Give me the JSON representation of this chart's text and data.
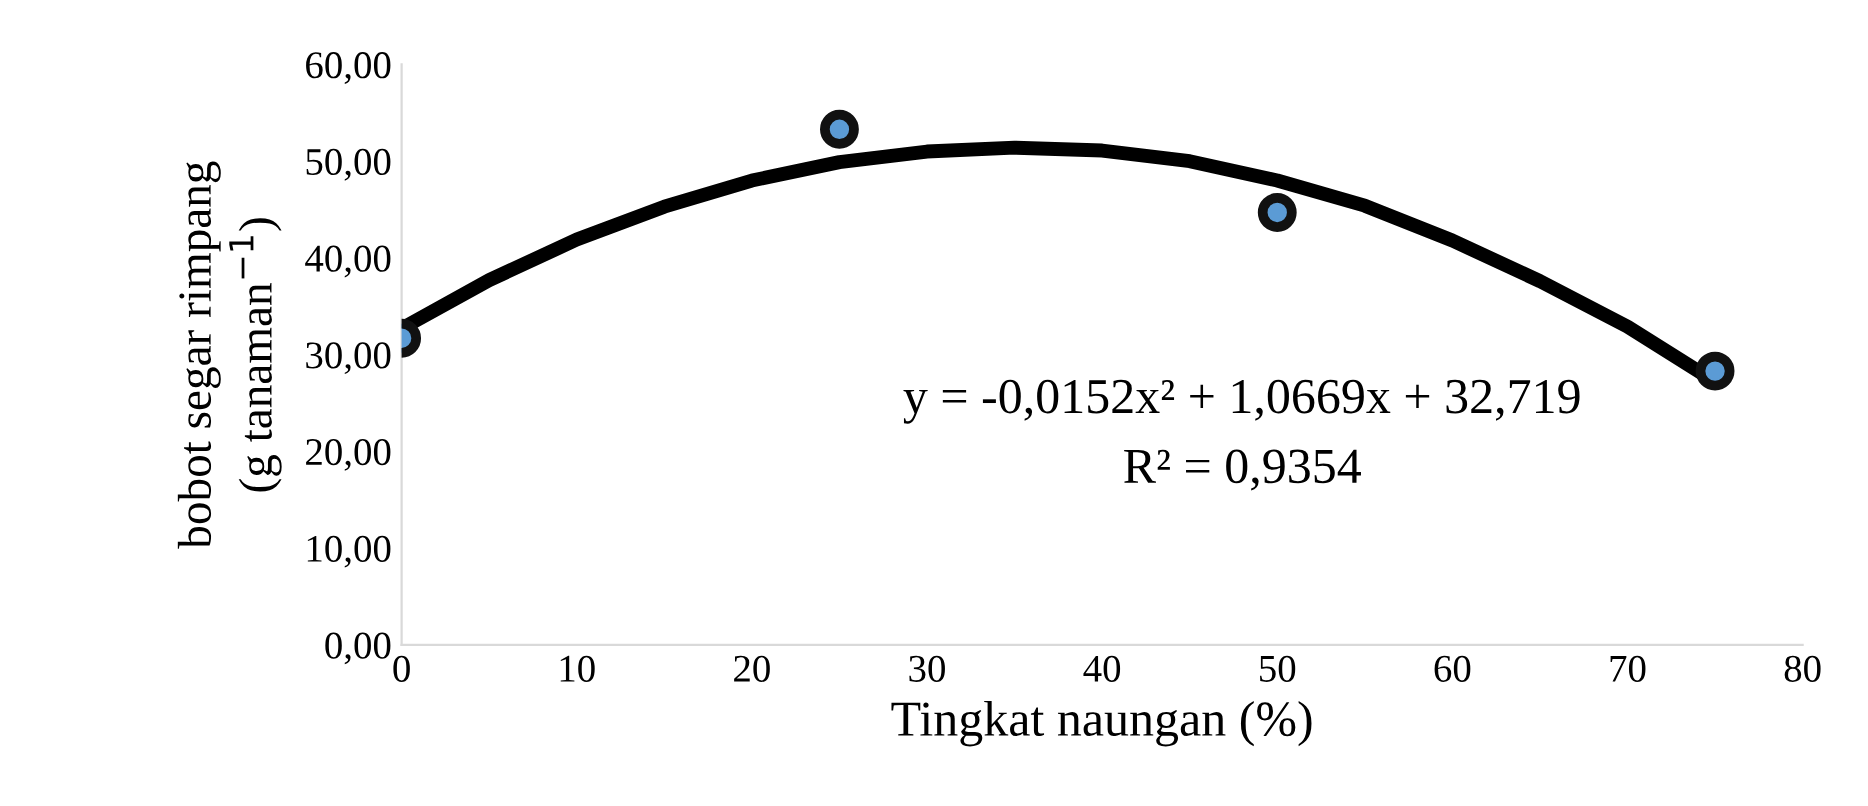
{
  "chart_data": {
    "type": "scatter",
    "xlabel": "Tingkat naungan (%)",
    "ylabel": "bobot segar rimpang\n(g tanaman$^{−1}$)",
    "xlim": [
      0,
      80
    ],
    "xticks": [
      0,
      10,
      20,
      30,
      40,
      50,
      60,
      70,
      80
    ],
    "ylim": [
      0,
      60
    ],
    "yticks": [
      {
        "value": 0,
        "label": "0,00"
      },
      {
        "value": 10,
        "label": "10,00"
      },
      {
        "value": 20,
        "label": "20,00"
      },
      {
        "value": 30,
        "label": "30,00"
      },
      {
        "value": 40,
        "label": "40,00"
      },
      {
        "value": 50,
        "label": "50,00"
      },
      {
        "value": 60,
        "label": "60,00"
      }
    ],
    "grid": false,
    "legend": false,
    "series": [
      {
        "marker": "circle",
        "color": "#5b9bd5",
        "x": [
          0,
          25,
          50,
          75
        ],
        "values": [
          31.7,
          53.3,
          44.7,
          28.3
        ]
      },
      {
        "type": "line",
        "color": "#000000",
        "x": [
          0,
          5,
          10,
          15,
          20,
          25,
          30,
          35,
          40,
          45,
          50,
          55,
          60,
          65,
          70,
          75
        ],
        "values": [
          32.7,
          37.7,
          41.9,
          45.3,
          48.0,
          49.9,
          51.0,
          51.4,
          51.1,
          50.0,
          48.0,
          45.4,
          41.8,
          37.6,
          32.9,
          27.2
        ]
      }
    ],
    "annotations": [
      "y = -0,0152x² + 1,0669x + 32,719",
      "R² = 0,9354"
    ]
  }
}
